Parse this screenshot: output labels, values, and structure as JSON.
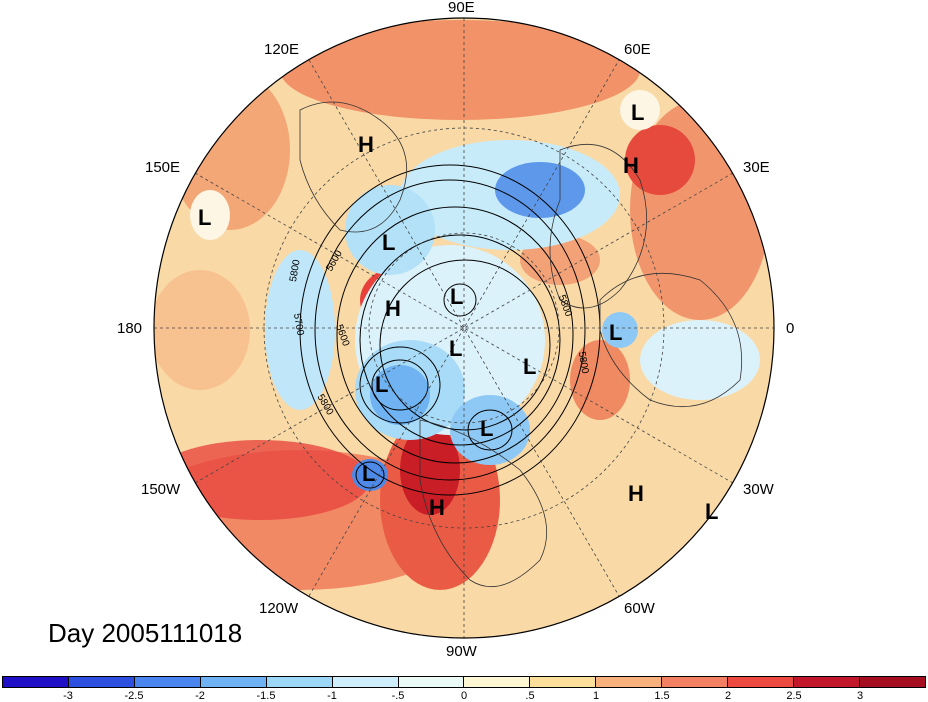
{
  "map": {
    "title": "Day 2005111018",
    "longitude_labels": [
      "90E",
      "60E",
      "30E",
      "0",
      "30W",
      "60W",
      "90W",
      "120W",
      "150W",
      "180",
      "150E",
      "120E"
    ],
    "contour_labels": [
      "5800",
      "5600",
      "5700",
      "5600",
      "5800",
      "5800",
      "5800"
    ],
    "pressure_centers": [
      {
        "type": "L"
      },
      {
        "type": "H"
      },
      {
        "type": "H"
      },
      {
        "type": "L"
      },
      {
        "type": "L"
      },
      {
        "type": "H"
      },
      {
        "type": "L"
      },
      {
        "type": "L"
      },
      {
        "type": "L"
      },
      {
        "type": "L"
      },
      {
        "type": "L"
      },
      {
        "type": "L"
      },
      {
        "type": "L"
      },
      {
        "type": "H"
      },
      {
        "type": "L"
      },
      {
        "type": "H"
      }
    ]
  },
  "colorbar": {
    "ticks": [
      "-3",
      "-2.5",
      "-2",
      "-1.5",
      "-1",
      "-.5",
      "0",
      ".5",
      "1",
      "1.5",
      "2",
      "2.5",
      "3"
    ],
    "colors": [
      "#1f10c8",
      "#2c4fe0",
      "#4a84ee",
      "#6fb2f4",
      "#9cd7f8",
      "#cdeefa",
      "#eafaf6",
      "#fdf6d2",
      "#fbdf9a",
      "#f8b07c",
      "#f38063",
      "#ec4a41",
      "#c2162a",
      "#a50e20"
    ]
  }
}
